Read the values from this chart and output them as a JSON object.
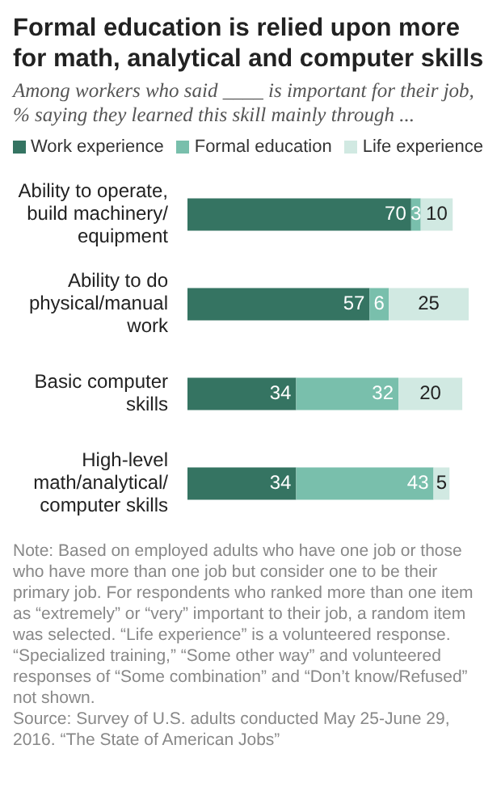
{
  "chart_data": {
    "type": "bar",
    "orientation": "horizontal",
    "stacked": true,
    "title": "Formal education is relied upon more for math, analytical and computer skills",
    "subtitle": "Among workers who said ____ is important for their job, % saying they learned this skill mainly through ...",
    "categories": [
      "Ability to operate, build machinery/ equipment",
      "Ability to do physical/manual work",
      "Basic computer skills",
      "High-level math/analytical/ computer skills"
    ],
    "series": [
      {
        "name": "Work experience",
        "color": "#357462",
        "values": [
          70,
          57,
          34,
          34
        ]
      },
      {
        "name": "Formal education",
        "color": "#79bfac",
        "values": [
          3,
          6,
          32,
          43
        ]
      },
      {
        "name": "Life experience",
        "color": "#d1e9e2",
        "values": [
          10,
          25,
          20,
          5
        ]
      }
    ],
    "data_labels": true,
    "legend": "top",
    "grid": false,
    "annotations": [
      "Note: Based on employed adults who have one job or those who have more than one job but consider one to be their primary job. For respondents who ranked more than one item as “extremely” or “very” important to their job, a random item was selected. “Life experience” is a volunteered response. “Specialized training,” “Some other way” and volunteered responses of “Some combination” and “Don’t know/Refused” not shown.",
      "Source: Survey of U.S. adults conducted May 25-June 29, 2016. “The State of American Jobs”"
    ]
  }
}
